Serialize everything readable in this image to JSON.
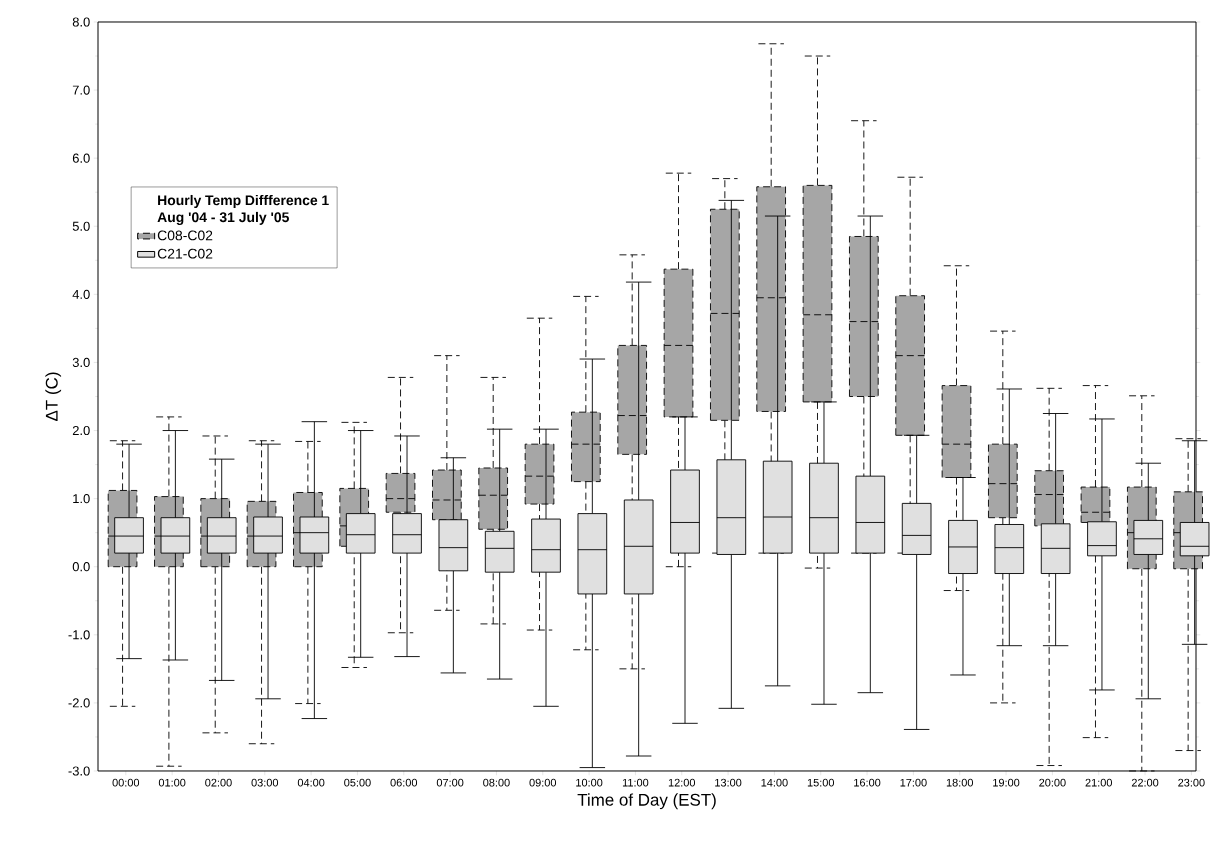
{
  "chart_data": {
    "type": "box",
    "xlabel": "Time of Day (EST)",
    "ylabel": "ΔT (C)",
    "legend_title": "Hourly Temp Diffference 1 Aug '04 - 31 July '05",
    "legend": "top left",
    "categories": [
      "00:00",
      "01:00",
      "02:00",
      "03:00",
      "04:00",
      "05:00",
      "06:00",
      "07:00",
      "08:00",
      "09:00",
      "10:00",
      "11:00",
      "12:00",
      "13:00",
      "14:00",
      "15:00",
      "16:00",
      "17:00",
      "18:00",
      "19:00",
      "20:00",
      "21:00",
      "22:00",
      "23:00"
    ],
    "ylim": [
      -3,
      8
    ],
    "yticks": [
      {
        "value": -3,
        "label": "-3.0"
      },
      {
        "value": -2,
        "label": "-2.0"
      },
      {
        "value": -1,
        "label": "-1.0"
      },
      {
        "value": 0,
        "label": "0.0"
      },
      {
        "value": 1,
        "label": "1.0"
      },
      {
        "value": 2,
        "label": "2.0"
      },
      {
        "value": 3,
        "label": "3.0"
      },
      {
        "value": 4,
        "label": "4.0"
      },
      {
        "value": 5,
        "label": "5.0"
      },
      {
        "value": 6,
        "label": "6.0"
      },
      {
        "value": 7,
        "label": "7.0"
      },
      {
        "value": 8,
        "label": "8.0"
      }
    ],
    "series": [
      {
        "name": "C08-C02",
        "color": "#a6a6a6",
        "line_style": "dashed",
        "boxes": [
          {
            "low": -2.05,
            "q1": 0.0,
            "median": 0.45,
            "q3": 1.12,
            "high": 1.85
          },
          {
            "low": -2.93,
            "q1": 0.0,
            "median": 0.45,
            "q3": 1.03,
            "high": 2.2
          },
          {
            "low": -2.44,
            "q1": 0.0,
            "median": 0.45,
            "q3": 1.0,
            "high": 1.92
          },
          {
            "low": -2.6,
            "q1": 0.0,
            "median": 0.45,
            "q3": 0.96,
            "high": 1.85
          },
          {
            "low": -2.01,
            "q1": 0.0,
            "median": 0.5,
            "q3": 1.09,
            "high": 1.84
          },
          {
            "low": -1.48,
            "q1": 0.3,
            "median": 0.6,
            "q3": 1.15,
            "high": 2.12
          },
          {
            "low": -0.97,
            "q1": 0.8,
            "median": 1.0,
            "q3": 1.37,
            "high": 2.78
          },
          {
            "low": -0.64,
            "q1": 0.69,
            "median": 0.98,
            "q3": 1.42,
            "high": 3.1
          },
          {
            "low": -0.84,
            "q1": 0.55,
            "median": 1.05,
            "q3": 1.45,
            "high": 2.78
          },
          {
            "low": -0.93,
            "q1": 0.92,
            "median": 1.33,
            "q3": 1.8,
            "high": 3.65
          },
          {
            "low": -1.22,
            "q1": 1.25,
            "median": 1.8,
            "q3": 2.27,
            "high": 3.97
          },
          {
            "low": -1.5,
            "q1": 1.65,
            "median": 2.22,
            "q3": 3.25,
            "high": 4.58
          },
          {
            "low": 0.0,
            "q1": 2.2,
            "median": 3.25,
            "q3": 4.37,
            "high": 5.78
          },
          {
            "low": 0.2,
            "q1": 2.15,
            "median": 3.72,
            "q3": 5.25,
            "high": 5.7
          },
          {
            "low": 0.2,
            "q1": 2.28,
            "median": 3.95,
            "q3": 5.58,
            "high": 7.68
          },
          {
            "low": -0.02,
            "q1": 2.42,
            "median": 3.7,
            "q3": 5.6,
            "high": 7.5
          },
          {
            "low": 0.2,
            "q1": 2.5,
            "median": 3.6,
            "q3": 4.85,
            "high": 6.55
          },
          {
            "low": 0.2,
            "q1": 1.93,
            "median": 3.1,
            "q3": 3.98,
            "high": 5.72
          },
          {
            "low": -0.35,
            "q1": 1.31,
            "median": 1.8,
            "q3": 2.66,
            "high": 4.42
          },
          {
            "low": -2.0,
            "q1": 0.72,
            "median": 1.22,
            "q3": 1.8,
            "high": 3.46
          },
          {
            "low": -2.92,
            "q1": 0.6,
            "median": 1.06,
            "q3": 1.41,
            "high": 2.62
          },
          {
            "low": -2.51,
            "q1": 0.65,
            "median": 0.8,
            "q3": 1.17,
            "high": 2.66
          },
          {
            "low": -3.0,
            "q1": -0.03,
            "median": 0.5,
            "q3": 1.17,
            "high": 2.51
          },
          {
            "low": -2.7,
            "q1": -0.03,
            "median": 0.5,
            "q3": 1.1,
            "high": 1.88
          }
        ]
      },
      {
        "name": "C21-C02",
        "color": "#e0e0e0",
        "line_style": "solid",
        "boxes": [
          {
            "low": -1.35,
            "q1": 0.2,
            "median": 0.45,
            "q3": 0.72,
            "high": 1.8
          },
          {
            "low": -1.37,
            "q1": 0.2,
            "median": 0.45,
            "q3": 0.72,
            "high": 2.0
          },
          {
            "low": -1.67,
            "q1": 0.2,
            "median": 0.45,
            "q3": 0.72,
            "high": 1.58
          },
          {
            "low": -1.94,
            "q1": 0.2,
            "median": 0.45,
            "q3": 0.73,
            "high": 1.8
          },
          {
            "low": -2.23,
            "q1": 0.2,
            "median": 0.5,
            "q3": 0.73,
            "high": 2.13
          },
          {
            "low": -1.33,
            "q1": 0.2,
            "median": 0.47,
            "q3": 0.78,
            "high": 2.0
          },
          {
            "low": -1.32,
            "q1": 0.2,
            "median": 0.47,
            "q3": 0.78,
            "high": 1.92
          },
          {
            "low": -1.56,
            "q1": -0.06,
            "median": 0.28,
            "q3": 0.69,
            "high": 1.6
          },
          {
            "low": -1.65,
            "q1": -0.08,
            "median": 0.27,
            "q3": 0.52,
            "high": 2.02
          },
          {
            "low": -2.05,
            "q1": -0.08,
            "median": 0.25,
            "q3": 0.7,
            "high": 2.02
          },
          {
            "low": -2.95,
            "q1": -0.4,
            "median": 0.25,
            "q3": 0.78,
            "high": 3.05
          },
          {
            "low": -2.78,
            "q1": -0.4,
            "median": 0.3,
            "q3": 0.98,
            "high": 4.18
          },
          {
            "low": -2.3,
            "q1": 0.2,
            "median": 0.65,
            "q3": 1.42,
            "high": 2.2
          },
          {
            "low": -2.08,
            "q1": 0.18,
            "median": 0.72,
            "q3": 1.57,
            "high": 5.38
          },
          {
            "low": -1.75,
            "q1": 0.2,
            "median": 0.73,
            "q3": 1.55,
            "high": 5.15
          },
          {
            "low": -2.02,
            "q1": 0.2,
            "median": 0.72,
            "q3": 1.52,
            "high": 2.42
          },
          {
            "low": -1.85,
            "q1": 0.2,
            "median": 0.65,
            "q3": 1.33,
            "high": 5.15
          },
          {
            "low": -2.39,
            "q1": 0.18,
            "median": 0.46,
            "q3": 0.93,
            "high": 1.93
          },
          {
            "low": -1.59,
            "q1": -0.1,
            "median": 0.29,
            "q3": 0.68,
            "high": 1.31
          },
          {
            "low": -1.16,
            "q1": -0.1,
            "median": 0.28,
            "q3": 0.62,
            "high": 2.61
          },
          {
            "low": -1.16,
            "q1": -0.1,
            "median": 0.27,
            "q3": 0.63,
            "high": 2.25
          },
          {
            "low": -1.81,
            "q1": 0.16,
            "median": 0.31,
            "q3": 0.66,
            "high": 2.17
          },
          {
            "low": -1.94,
            "q1": 0.18,
            "median": 0.41,
            "q3": 0.68,
            "high": 1.52
          },
          {
            "low": -1.14,
            "q1": 0.16,
            "median": 0.3,
            "q3": 0.65,
            "high": 1.85
          }
        ]
      }
    ]
  }
}
